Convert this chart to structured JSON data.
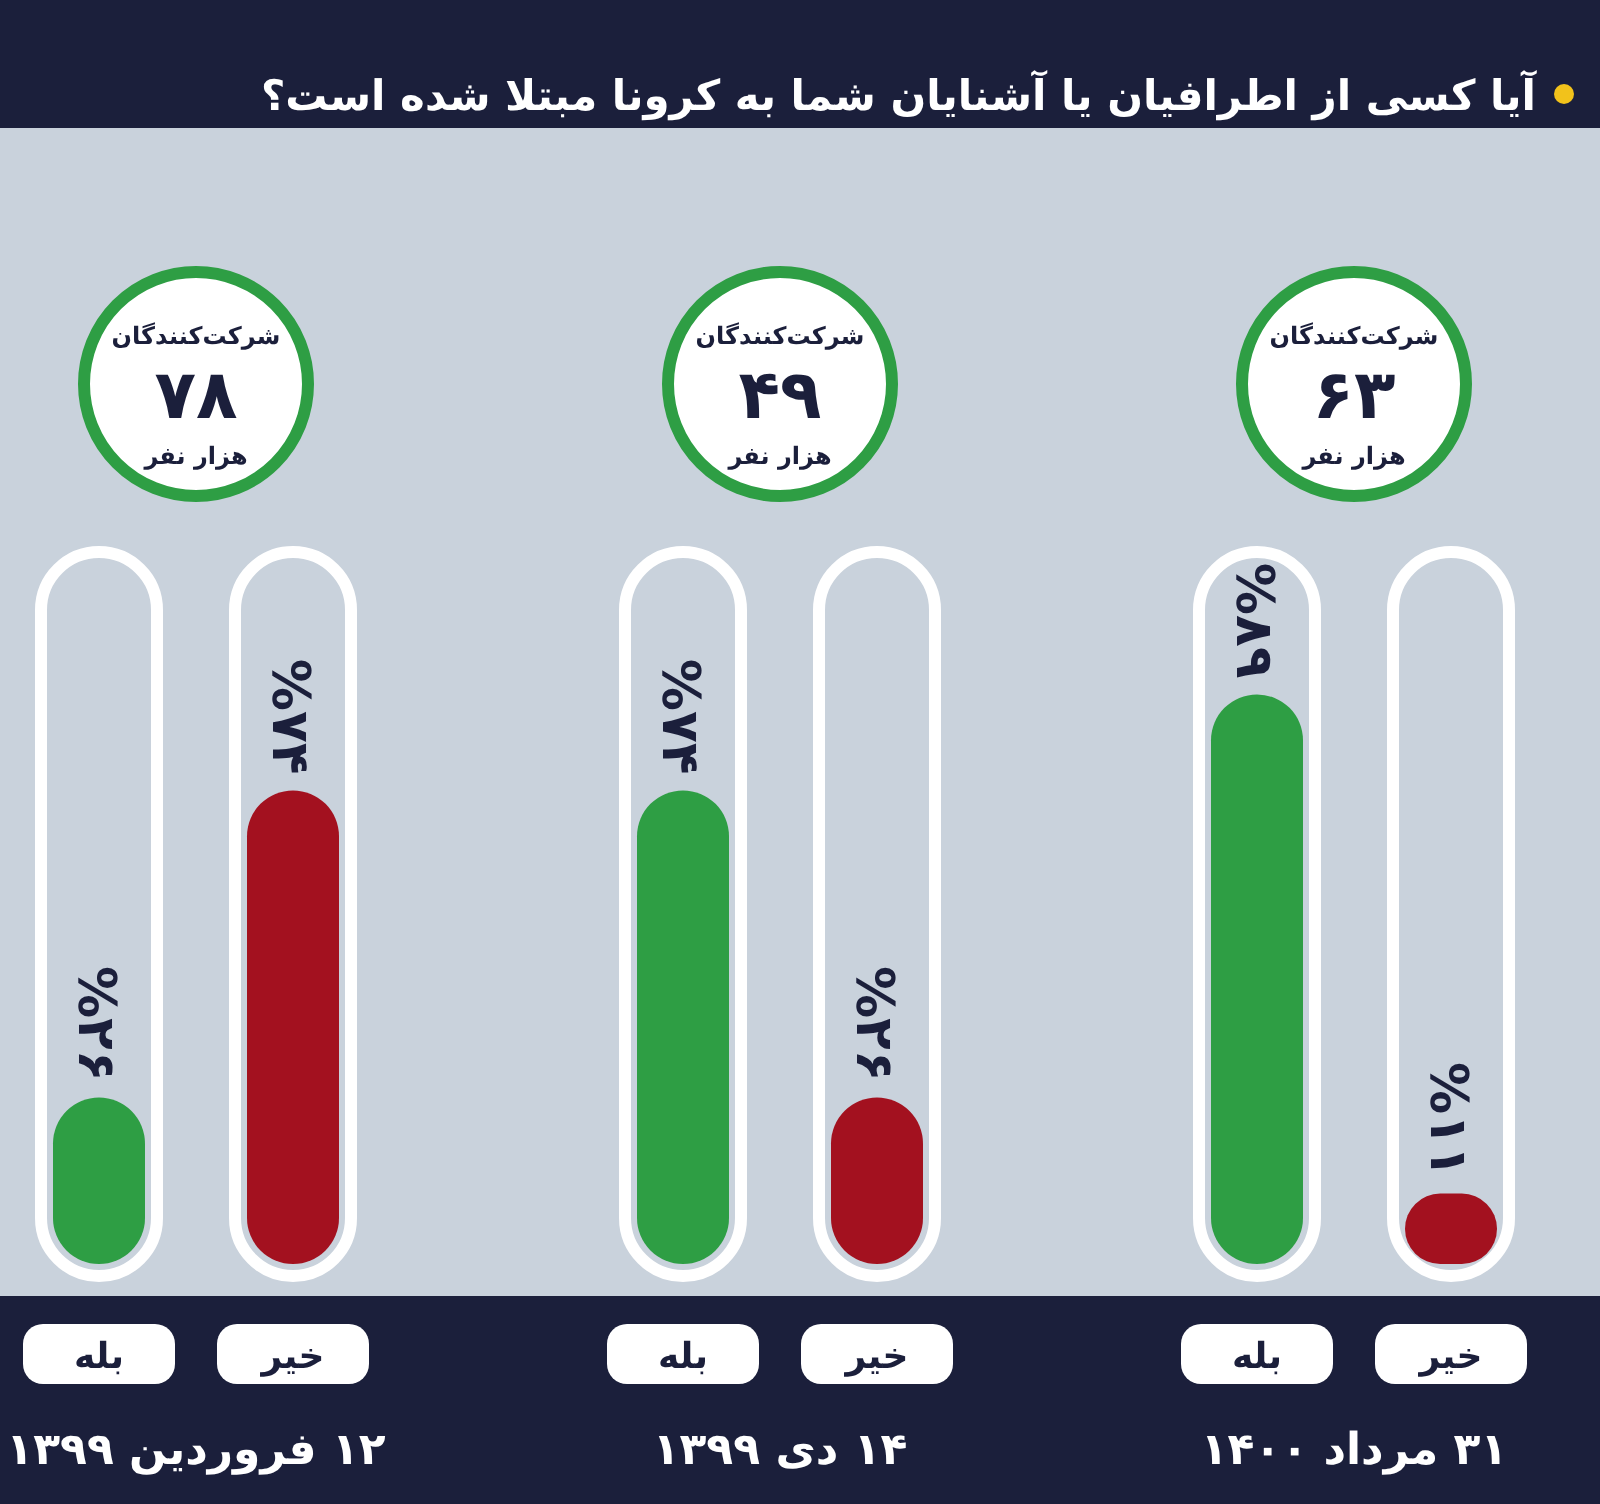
{
  "chart_data": {
    "type": "bar",
    "title": "آیا کسی از اطرافیان یا آشنایان شما به کرونا مبتلا شده است؟",
    "categories": [
      "۱۲ فروردین ۱۳۹۹",
      "۱۴ دی ۱۳۹۹",
      "۳۱ مرداد ۱۴۰۰"
    ],
    "series": [
      {
        "name": "بله",
        "color": "#2e9e44",
        "values": [
          26,
          74,
          89
        ],
        "value_labels": [
          "%۲۶",
          "%۷۴",
          "%۸۹"
        ]
      },
      {
        "name": "خیر",
        "color": "#a3111f",
        "values": [
          74,
          26,
          11
        ],
        "value_labels": [
          "%۷۴",
          "%۲۶",
          "%۱۱"
        ]
      }
    ],
    "annotations": [
      "شرکت‌کنندگان\n۷۸\nهزار نفر",
      "شرکت‌کنندگان\n۴۹\nهزار نفر",
      "شرکت‌کنندگان\n۶۳\nهزار نفر"
    ]
  }
}
